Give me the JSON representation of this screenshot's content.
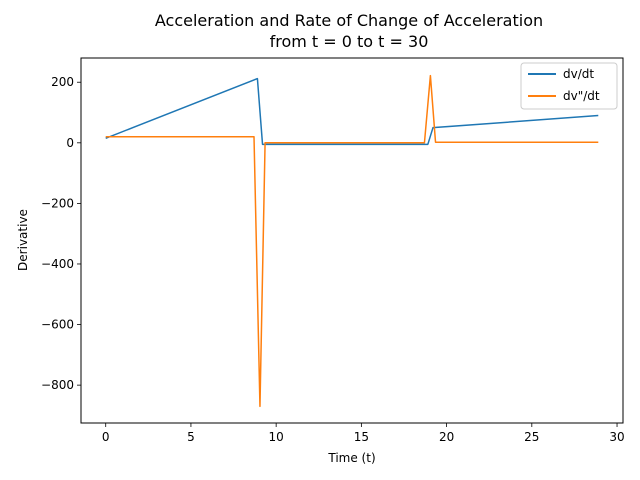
{
  "chart_data": {
    "type": "line",
    "title_line1": "Acceleration and Rate of Change of Acceleration",
    "title_line2": "from t = 0 to t = 30",
    "xlabel": "Time (t)",
    "ylabel": "Derivative",
    "xlim": [
      -1.45,
      30.35
    ],
    "ylim": [
      -925,
      280
    ],
    "xticks": [
      0,
      5,
      10,
      15,
      20,
      25,
      30
    ],
    "yticks": [
      200,
      0,
      -200,
      -400,
      -600,
      -800
    ],
    "ytick_labels": [
      "200",
      "0",
      "−200",
      "−400",
      "−600",
      "−800"
    ],
    "grid": false,
    "legend_position": "upper-right",
    "series": [
      {
        "name": "dv/dt",
        "color": "#1f77b4",
        "x": [
          0,
          8.9,
          9.2,
          18.9,
          19.2,
          28.9
        ],
        "y": [
          15,
          212,
          -5,
          -5,
          50,
          90
        ]
      },
      {
        "name": "dv\"/dt",
        "color": "#ff7f0e",
        "x": [
          0,
          8.7,
          9.05,
          9.35,
          18.7,
          19.05,
          19.35,
          28.9
        ],
        "y": [
          20,
          20,
          -870,
          0,
          0,
          222,
          2,
          2
        ]
      }
    ]
  }
}
